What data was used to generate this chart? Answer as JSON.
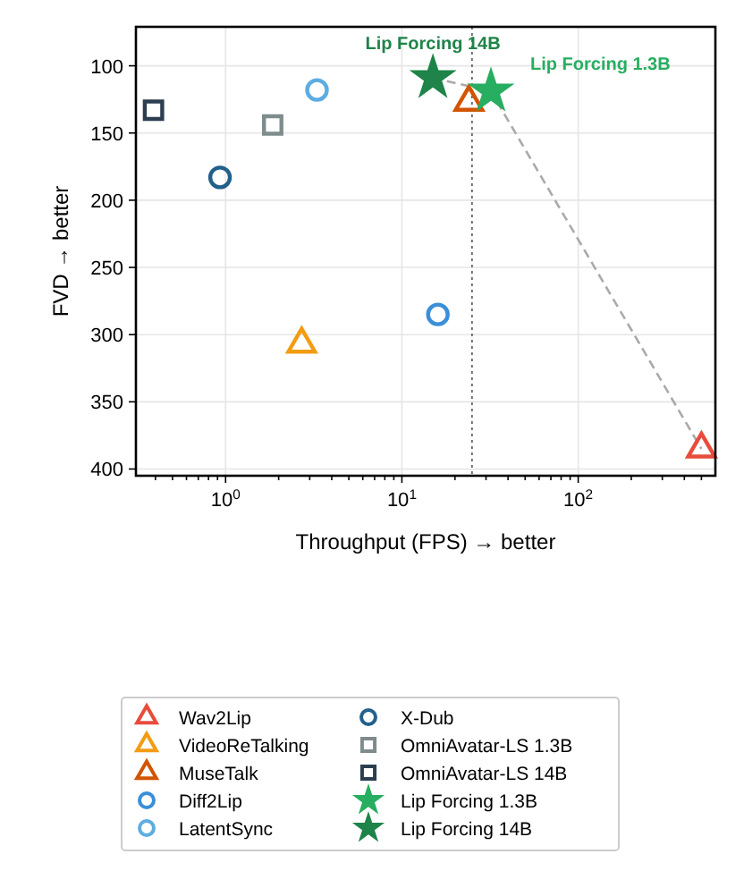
{
  "chart_data": {
    "type": "scatter",
    "xlabel": "Throughput (FPS) → better",
    "ylabel": "FVD → better",
    "log": "x",
    "grid": true,
    "legend": "bottom",
    "xlim": [
      0.31,
      600
    ],
    "ylim": [
      405,
      71
    ],
    "xticks": [
      {
        "value": 0.4,
        "label": null
      },
      {
        "value": 0.5,
        "label": null
      },
      {
        "value": 0.6,
        "label": null
      },
      {
        "value": 0.7,
        "label": null
      },
      {
        "value": 0.8,
        "label": null
      },
      {
        "value": 0.9,
        "label": null
      },
      {
        "value": 1,
        "label": "10$^{0}$"
      },
      {
        "value": 2,
        "label": null
      },
      {
        "value": 3,
        "label": null
      },
      {
        "value": 4,
        "label": null
      },
      {
        "value": 5,
        "label": null
      },
      {
        "value": 6,
        "label": null
      },
      {
        "value": 7,
        "label": null
      },
      {
        "value": 8,
        "label": null
      },
      {
        "value": 9,
        "label": null
      },
      {
        "value": 10,
        "label": "10$^{1}$"
      },
      {
        "value": 20,
        "label": null
      },
      {
        "value": 30,
        "label": null
      },
      {
        "value": 40,
        "label": null
      },
      {
        "value": 50,
        "label": null
      },
      {
        "value": 60,
        "label": null
      },
      {
        "value": 70,
        "label": null
      },
      {
        "value": 80,
        "label": null
      },
      {
        "value": 90,
        "label": null
      },
      {
        "value": 100,
        "label": "10$^{2}$"
      },
      {
        "value": 200,
        "label": null
      },
      {
        "value": 300,
        "label": null
      },
      {
        "value": 400,
        "label": null
      },
      {
        "value": 500,
        "label": null
      }
    ],
    "yticks": [
      100,
      150,
      200,
      250,
      300,
      350,
      400
    ],
    "ref_lines": [
      {
        "axis": "x",
        "value": 25,
        "color": "#555555",
        "line_style": "dotted"
      }
    ],
    "series": [
      {
        "type": "line",
        "x": [
          15,
          32,
          500
        ],
        "values": [
          109,
          119,
          385
        ],
        "color": "#aaaaaa",
        "line_style": "dashed"
      },
      {
        "name": "Wav2Lip",
        "x": [
          500
        ],
        "values": [
          385
        ],
        "color": "#e74c3c",
        "marker": "triangle"
      },
      {
        "name": "VideoReTalking",
        "x": [
          2.7
        ],
        "values": [
          307
        ],
        "color": "#f39c12",
        "marker": "triangle"
      },
      {
        "name": "MuseTalk",
        "x": [
          24
        ],
        "values": [
          127
        ],
        "color": "#d35400",
        "marker": "triangle"
      },
      {
        "name": "Diff2Lip",
        "x": [
          16
        ],
        "values": [
          285
        ],
        "color": "#3a8fd9",
        "marker": "circle"
      },
      {
        "name": "LatentSync",
        "x": [
          3.3
        ],
        "values": [
          118
        ],
        "color": "#5dade2",
        "marker": "circle"
      },
      {
        "name": "X-Dub",
        "x": [
          0.93
        ],
        "values": [
          183
        ],
        "color": "#21618c",
        "marker": "circle"
      },
      {
        "name": "OmniAvatar-LS 1.3B",
        "x": [
          1.85
        ],
        "values": [
          144
        ],
        "color": "#7f8c8d",
        "marker": "square"
      },
      {
        "name": "OmniAvatar-LS 14B",
        "x": [
          0.39
        ],
        "values": [
          133
        ],
        "color": "#2c3e50",
        "marker": "square"
      },
      {
        "name": "Lip Forcing 1.3B",
        "x": [
          32
        ],
        "values": [
          119
        ],
        "color": "#27ae60",
        "marker": "star"
      },
      {
        "name": "Lip Forcing 14B",
        "x": [
          15
        ],
        "values": [
          109
        ],
        "color": "#1e8449",
        "marker": "star"
      }
    ],
    "annotations": [
      {
        "text": "Lip Forcing 14B",
        "x": 15,
        "y": 109
      },
      {
        "text": "Lip Forcing 1.3B",
        "x": 32,
        "y": 119
      }
    ]
  }
}
